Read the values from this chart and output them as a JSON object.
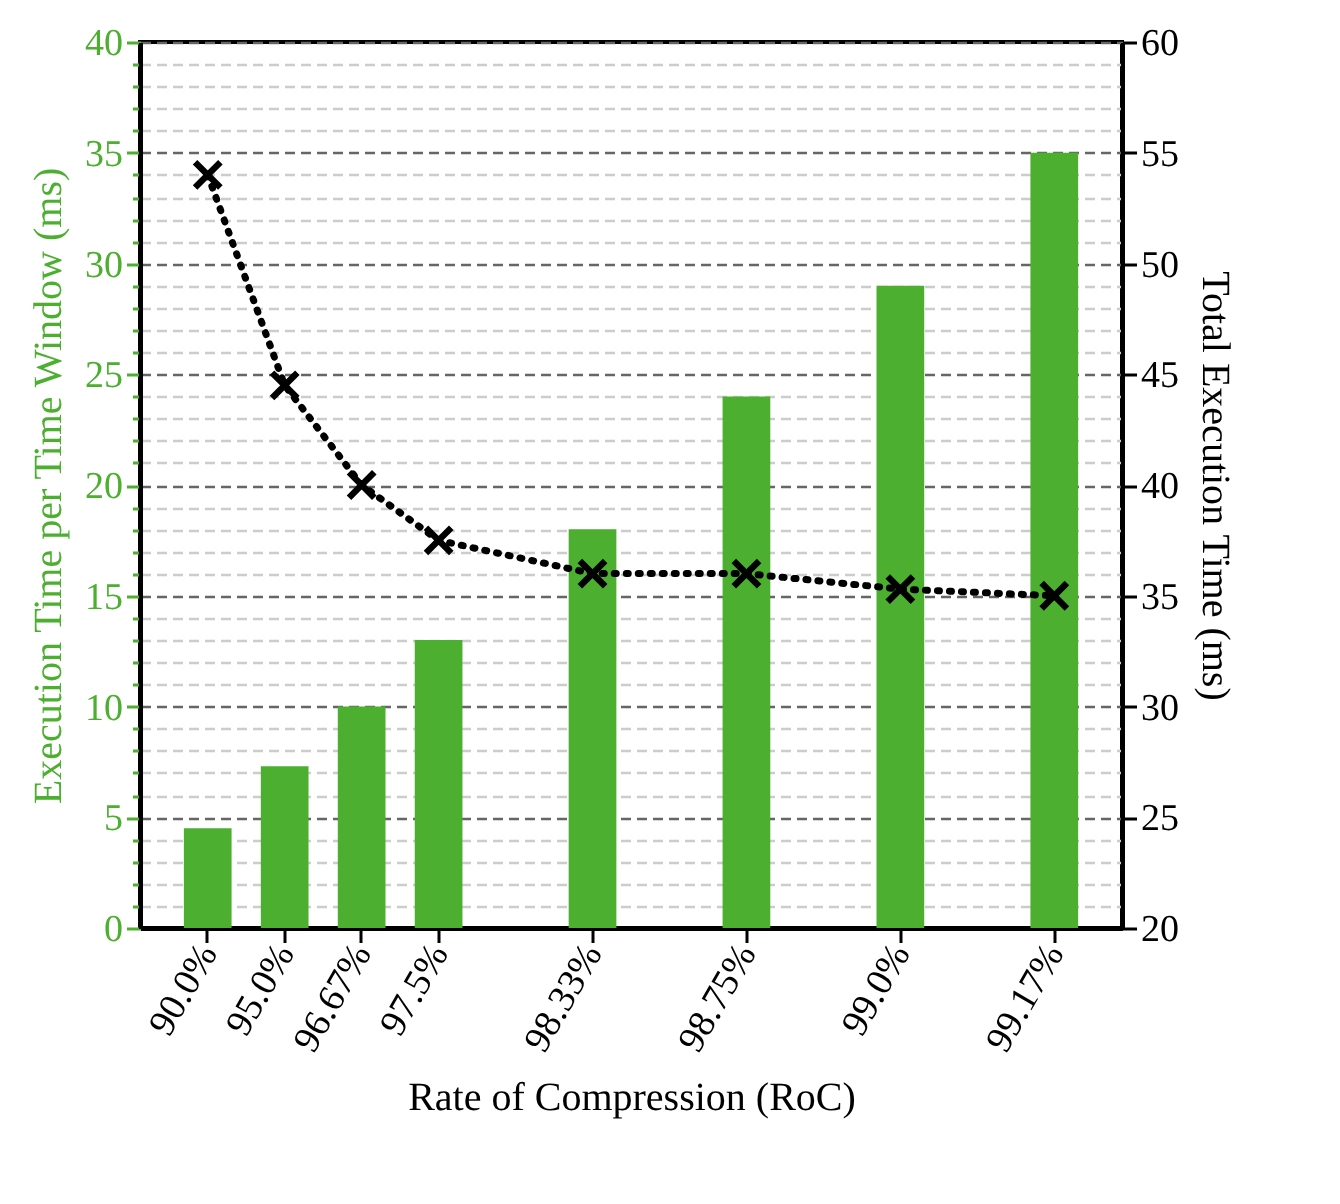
{
  "chart_data": {
    "type": "bar",
    "xlabel": "Rate of Compression (RoC)",
    "ylabel": "Execution Time per Time Window (ms)",
    "y2label": "Total Execution Time (ms)",
    "categories": [
      "90.0%",
      "95.0%",
      "96.67%",
      "97.5%",
      null,
      "98.33%",
      null,
      "98.75%",
      null,
      "99.0%",
      null,
      "99.17%"
    ],
    "series": [
      {
        "color": "#4daf30",
        "values": [
          4.5,
          7.3,
          10,
          13,
          null,
          18,
          null,
          24,
          null,
          29,
          null,
          35
        ]
      },
      {
        "type": "line",
        "axis": "y2",
        "color": "#000000",
        "marker": "cross",
        "line_style": "dotted",
        "values": [
          54,
          44.5,
          40,
          37.5,
          null,
          36,
          null,
          36,
          null,
          35.3,
          null,
          35
        ]
      }
    ],
    "ylim": [
      0,
      40
    ],
    "yticks": [
      0,
      {
        "value": 1,
        "label": null
      },
      {
        "value": 2,
        "label": null
      },
      {
        "value": 3,
        "label": null
      },
      {
        "value": 4,
        "label": null
      },
      5,
      {
        "value": 6,
        "label": null
      },
      {
        "value": 7,
        "label": null
      },
      {
        "value": 8,
        "label": null
      },
      {
        "value": 9,
        "label": null
      },
      10,
      {
        "value": 11,
        "label": null
      },
      {
        "value": 12,
        "label": null
      },
      {
        "value": 13,
        "label": null
      },
      {
        "value": 14,
        "label": null
      },
      15,
      {
        "value": 16,
        "label": null
      },
      {
        "value": 17,
        "label": null
      },
      {
        "value": 18,
        "label": null
      },
      {
        "value": 19,
        "label": null
      },
      20,
      {
        "value": 21,
        "label": null
      },
      {
        "value": 22,
        "label": null
      },
      {
        "value": 23,
        "label": null
      },
      {
        "value": 24,
        "label": null
      },
      25,
      {
        "value": 26,
        "label": null
      },
      {
        "value": 27,
        "label": null
      },
      {
        "value": 28,
        "label": null
      },
      {
        "value": 29,
        "label": null
      },
      30,
      {
        "value": 31,
        "label": null
      },
      {
        "value": 32,
        "label": null
      },
      {
        "value": 33,
        "label": null
      },
      {
        "value": 34,
        "label": null
      },
      35,
      {
        "value": 36,
        "label": null
      },
      {
        "value": 37,
        "label": null
      },
      {
        "value": 38,
        "label": null
      },
      {
        "value": 39,
        "label": null
      },
      40
    ],
    "y2lim": [
      20,
      60
    ],
    "y2ticks": [
      20,
      25,
      30,
      35,
      40,
      45,
      50,
      55,
      60
    ],
    "grid": true
  }
}
